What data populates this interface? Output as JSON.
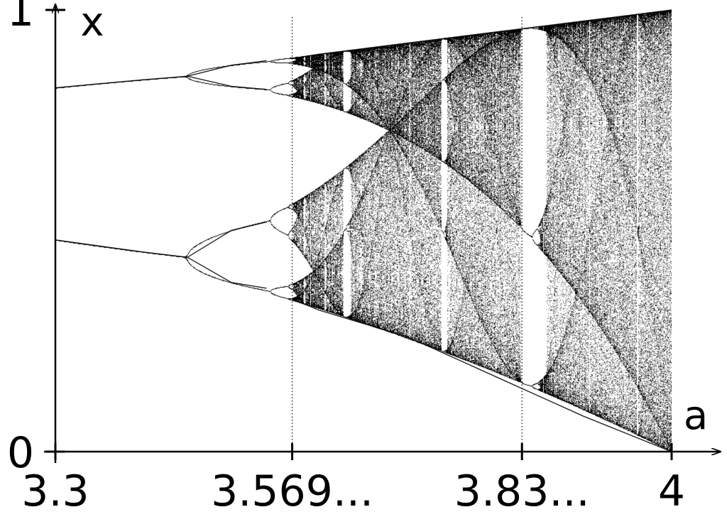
{
  "chart_data": {
    "type": "scatter",
    "title": "",
    "xlabel": "a",
    "ylabel": "x",
    "xlim": [
      3.3,
      4.0
    ],
    "ylim": [
      0,
      1
    ],
    "grid": false,
    "legend": "none",
    "x_ticks": [
      {
        "value": 3.3,
        "label": "3.3"
      },
      {
        "value": 3.569,
        "label": "3.569..."
      },
      {
        "value": 3.83,
        "label": "3.83..."
      },
      {
        "value": 4.0,
        "label": "4"
      }
    ],
    "y_ticks": [
      {
        "value": 0,
        "label": "0"
      },
      {
        "value": 1,
        "label": "1"
      }
    ],
    "reference_lines": [
      {
        "axis": "x",
        "value": 3.569,
        "style": "dotted"
      },
      {
        "axis": "x",
        "value": 3.83,
        "style": "dotted"
      }
    ],
    "series": [
      {
        "a": [
          3.3,
          3.4,
          3.45
        ],
        "x": [
          0.8236,
          0.842,
          0.85
        ]
      },
      {
        "a": [
          3.3,
          3.4,
          3.45
        ],
        "x": [
          0.4794,
          0.452,
          0.44
        ]
      },
      {
        "a": [
          3.45,
          3.5,
          3.54
        ],
        "x": [
          0.85,
          0.875,
          0.885
        ]
      },
      {
        "a": [
          3.45,
          3.5,
          3.54
        ],
        "x": [
          0.85,
          0.827,
          0.82
        ]
      },
      {
        "a": [
          3.45,
          3.5,
          3.54
        ],
        "x": [
          0.44,
          0.501,
          0.52
        ]
      },
      {
        "a": [
          3.45,
          3.5,
          3.54
        ],
        "x": [
          0.44,
          0.383,
          0.37
        ]
      },
      {
        "a": [
          3.569,
          3.6,
          3.7,
          3.8,
          3.9,
          4.0
        ],
        "x": [
          0.89,
          0.9,
          0.925,
          0.95,
          0.975,
          1.0
        ]
      },
      {
        "a": [
          3.569,
          3.6,
          3.7,
          3.8,
          3.9,
          4.0
        ],
        "x": [
          0.345,
          0.32,
          0.26,
          0.17,
          0.08,
          0.0
        ]
      }
    ],
    "periodic_windows": [
      {
        "a_start": 3.6265,
        "a_end": 3.6305
      },
      {
        "a_start": 3.7385,
        "a_end": 3.7425
      },
      {
        "a_start": 3.8284,
        "a_end": 3.857
      }
    ]
  },
  "colors": {
    "ink": "#000000",
    "background": "#ffffff"
  }
}
